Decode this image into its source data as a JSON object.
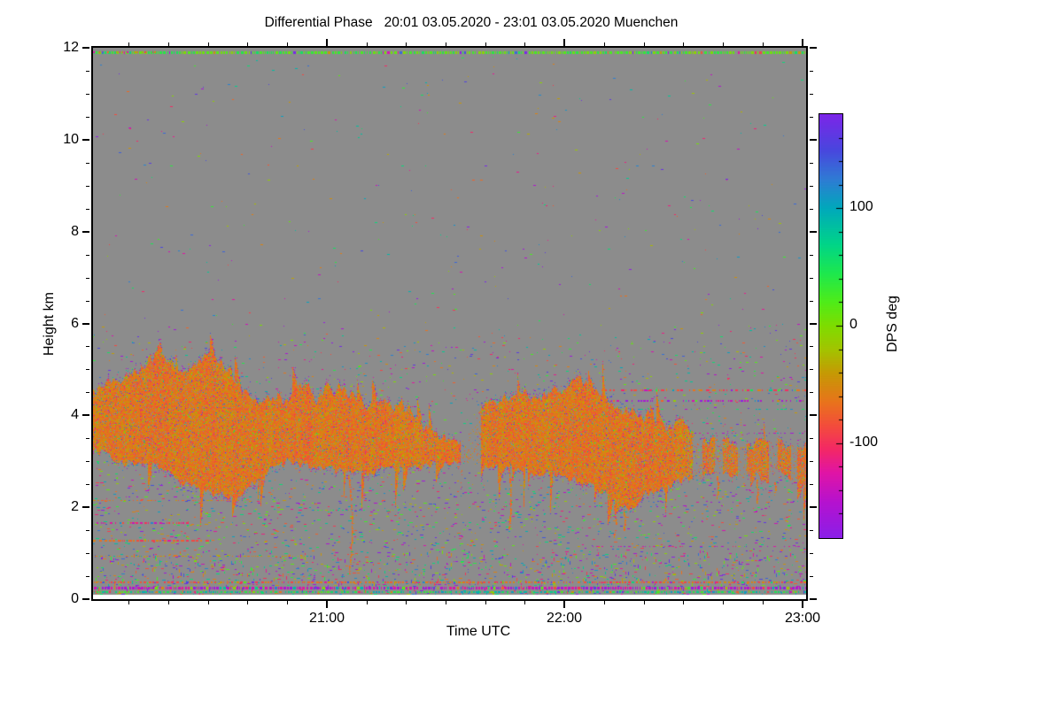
{
  "figure": {
    "background": "#ffffff"
  },
  "chart_data": {
    "type": "heatmap",
    "title": "Differential Phase   20:01 03.05.2020 - 23:01 03.05.2020 Muenchen",
    "station": "Muenchen",
    "time_start": "20:01 03.05.2020",
    "time_end": "23:01 03.05.2020",
    "xlabel": "Time UTC",
    "ylabel": "Height km",
    "x_range_minutes": [
      0,
      180
    ],
    "xticks": [
      {
        "label": "21:00",
        "minute": 59
      },
      {
        "label": "22:00",
        "minute": 119
      },
      {
        "label": "23:00",
        "minute": 179
      }
    ],
    "x_minor_step_minutes": 10,
    "ylim": [
      0,
      12
    ],
    "yticks": [
      0,
      2,
      4,
      6,
      8,
      10,
      12
    ],
    "y_minor_step": 0.5,
    "no_data_color": "#8c8c8c",
    "below_ground_color": "#ffffff",
    "grid": false,
    "colorbar": {
      "label": "DPS deg",
      "range": [
        -180,
        180
      ],
      "ticks": [
        {
          "label": "100",
          "value": 100
        },
        {
          "label": "0",
          "value": 0
        },
        {
          "label": "-100",
          "value": -100
        }
      ],
      "minor_step": 20,
      "stops": [
        [
          -180,
          "#8b1fe8"
        ],
        [
          -150,
          "#b512cf"
        ],
        [
          -125,
          "#e014a6"
        ],
        [
          -105,
          "#f32866"
        ],
        [
          -85,
          "#f34c3c"
        ],
        [
          -65,
          "#e9731c"
        ],
        [
          -40,
          "#c59a04"
        ],
        [
          -20,
          "#a3c400"
        ],
        [
          0,
          "#7fdc00"
        ],
        [
          20,
          "#50ec18"
        ],
        [
          45,
          "#1de84e"
        ],
        [
          70,
          "#00d489"
        ],
        [
          100,
          "#00a9bb"
        ],
        [
          125,
          "#2f7bd4"
        ],
        [
          150,
          "#4946de"
        ],
        [
          180,
          "#7c26e8"
        ]
      ]
    },
    "cloud": {
      "description": "precipitating cloud layer, differential phase mostly -35 to -90 deg (orange/red), jagged edges with multicolor noise",
      "mean_value_deg": -62,
      "value_spread_deg": 26,
      "fill_density": 0.93,
      "envelope": [
        [
          0,
          3.3,
          4.55
        ],
        [
          5,
          3.05,
          4.7
        ],
        [
          10,
          2.95,
          4.9
        ],
        [
          14,
          2.95,
          5.15
        ],
        [
          17,
          2.9,
          5.45
        ],
        [
          19,
          2.8,
          5.1
        ],
        [
          23,
          2.55,
          5.0
        ],
        [
          27,
          2.45,
          5.25
        ],
        [
          30,
          2.35,
          5.3
        ],
        [
          33,
          2.25,
          5.1
        ],
        [
          36,
          2.2,
          4.7
        ],
        [
          40,
          2.5,
          4.4
        ],
        [
          45,
          2.9,
          4.3
        ],
        [
          49,
          3.0,
          4.45
        ],
        [
          53,
          2.95,
          4.7
        ],
        [
          56,
          2.9,
          4.4
        ],
        [
          59,
          2.85,
          4.6
        ],
        [
          62,
          2.8,
          4.5
        ],
        [
          66,
          2.8,
          4.4
        ],
        [
          70,
          2.75,
          4.3
        ],
        [
          75,
          2.9,
          4.25
        ],
        [
          80,
          2.9,
          4.05
        ],
        [
          85,
          2.95,
          3.6
        ],
        [
          90,
          2.95,
          3.45
        ],
        [
          94,
          3.0,
          3.35
        ],
        [
          97,
          2.95,
          4.05
        ],
        [
          100,
          2.9,
          4.3
        ],
        [
          104,
          2.9,
          4.4
        ],
        [
          108,
          2.85,
          4.5
        ],
        [
          112,
          2.8,
          4.35
        ],
        [
          116,
          2.7,
          4.5
        ],
        [
          120,
          2.65,
          4.7
        ],
        [
          123,
          2.55,
          4.85
        ],
        [
          126,
          2.5,
          4.55
        ],
        [
          129,
          2.35,
          4.35
        ],
        [
          132,
          2.1,
          4.2
        ],
        [
          135,
          1.95,
          4.05
        ],
        [
          138,
          2.2,
          4.0
        ],
        [
          142,
          2.4,
          3.9
        ],
        [
          146,
          2.5,
          3.75
        ],
        [
          149,
          2.6,
          3.9
        ],
        [
          152,
          2.65,
          3.5
        ],
        [
          155,
          2.7,
          3.35
        ],
        [
          158,
          2.75,
          3.55
        ],
        [
          161,
          2.7,
          3.4
        ],
        [
          164,
          2.75,
          3.3
        ],
        [
          167,
          2.7,
          3.35
        ],
        [
          170,
          2.55,
          3.5
        ],
        [
          173,
          2.8,
          3.45
        ],
        [
          176,
          2.6,
          3.35
        ],
        [
          179,
          2.55,
          3.3
        ]
      ],
      "gaps": [
        [
          93,
          97.5
        ],
        [
          151.5,
          153.5
        ],
        [
          157,
          158.6
        ],
        [
          163,
          164.6
        ],
        [
          170.8,
          172.6
        ],
        [
          176.3,
          177.4
        ]
      ],
      "virga": [
        {
          "t": 64.5,
          "from": 2.7,
          "to": 0.55,
          "curve": 4
        },
        {
          "t": 105,
          "from": 2.85,
          "to": 1.55,
          "curve": 2
        },
        {
          "t": 131.5,
          "from": 2.05,
          "to": 1.35,
          "curve": 2
        },
        {
          "t": 134,
          "from": 1.95,
          "to": 1.5,
          "curve": 1
        },
        {
          "t": 157.5,
          "from": 2.7,
          "to": 2.2,
          "curve": 1
        },
        {
          "t": 167.5,
          "from": 2.6,
          "to": 2.1,
          "curve": 1
        },
        {
          "t": 172,
          "from": 2.55,
          "to": 2.3,
          "curve": 1
        }
      ]
    },
    "streak_lines": [
      {
        "km": 11.9,
        "t0": 0,
        "t1": 180,
        "density": 0.85,
        "v0": -8,
        "v1": 55,
        "th": 3,
        "dash": 3,
        "alt": 0.12
      },
      {
        "km": 11.9,
        "t0": 0,
        "t1": 16,
        "density": 0.35,
        "v0": -130,
        "v1": -30,
        "th": 2,
        "dash": 2,
        "alt": 0.2
      },
      {
        "km": 4.55,
        "t0": 122,
        "t1": 180,
        "density": 0.4,
        "v0": -108,
        "v1": -55,
        "th": 2,
        "dash": 4,
        "alt": 0.15
      },
      {
        "km": 4.32,
        "t0": 122,
        "t1": 180,
        "density": 0.32,
        "v0": -178,
        "v1": -128,
        "th": 2,
        "dash": 3,
        "alt": 0.3
      },
      {
        "km": 4.15,
        "t0": 127,
        "t1": 180,
        "density": 0.16,
        "v0": 40,
        "v1": 110,
        "th": 1,
        "dash": 3,
        "alt": 0.2
      },
      {
        "km": 3.62,
        "t0": 129,
        "t1": 180,
        "density": 0.25,
        "v0": -175,
        "v1": -120,
        "th": 1,
        "dash": 3,
        "alt": 0.2
      },
      {
        "km": 2.15,
        "t0": 0,
        "t1": 38,
        "density": 0.28,
        "v0": -90,
        "v1": -40,
        "th": 1,
        "dash": 3,
        "alt": 0.2
      },
      {
        "km": 1.65,
        "t0": 0,
        "t1": 24,
        "density": 0.5,
        "v0": -140,
        "v1": -80,
        "th": 2,
        "dash": 3,
        "alt": 0.15
      },
      {
        "km": 1.28,
        "t0": 0,
        "t1": 30,
        "density": 0.45,
        "v0": -100,
        "v1": -50,
        "th": 2,
        "dash": 4,
        "alt": 0.15
      },
      {
        "km": 0.95,
        "t0": 0,
        "t1": 55,
        "density": 0.3,
        "v0": -70,
        "v1": -25,
        "th": 1,
        "dash": 3,
        "alt": 0.2
      },
      {
        "km": 1.95,
        "t0": 55,
        "t1": 80,
        "density": 0.2,
        "v0": -10,
        "v1": 80,
        "th": 1,
        "dash": 2,
        "alt": 0.2
      },
      {
        "km": 2.02,
        "t0": 95,
        "t1": 150,
        "density": 0.12,
        "v0": -180,
        "v1": -130,
        "th": 1,
        "dash": 2,
        "alt": 0.35
      },
      {
        "km": 1.15,
        "t0": 124,
        "t1": 180,
        "density": 0.25,
        "v0": -150,
        "v1": -108,
        "th": 1,
        "dash": 3,
        "alt": 0.2
      },
      {
        "km": 0.37,
        "t0": 0,
        "t1": 180,
        "density": 0.5,
        "v0": -100,
        "v1": -45,
        "th": 2,
        "dash": 3,
        "alt": 0.15
      },
      {
        "km": 0.26,
        "t0": 0,
        "t1": 180,
        "density": 0.8,
        "v0": -175,
        "v1": -118,
        "th": 3,
        "dash": 3,
        "alt": 0.25
      },
      {
        "km": 0.15,
        "t0": 0,
        "t1": 180,
        "density": 0.55,
        "v0": 20,
        "v1": 110,
        "th": 2,
        "dash": 3,
        "alt": 0.15
      }
    ],
    "background_speckle": {
      "description": "random multicolor clutter pixels, denser at low heights",
      "bands": [
        {
          "h0": 11.8,
          "h1": 12.0,
          "density": 0.0
        },
        {
          "h0": 6.0,
          "h1": 11.8,
          "density": 0.0015
        },
        {
          "h0": 5.6,
          "h1": 6.0,
          "density": 0.004
        },
        {
          "h0": 2.6,
          "h1": 5.6,
          "density": 0.01
        },
        {
          "h0": 1.0,
          "h1": 2.6,
          "density": 0.022
        },
        {
          "h0": 0.45,
          "h1": 1.0,
          "density": 0.035
        },
        {
          "h0": 0.1,
          "h1": 0.45,
          "density": 0.05
        },
        {
          "h0": 0.0,
          "h1": 0.1,
          "density": 0.0
        }
      ]
    }
  }
}
